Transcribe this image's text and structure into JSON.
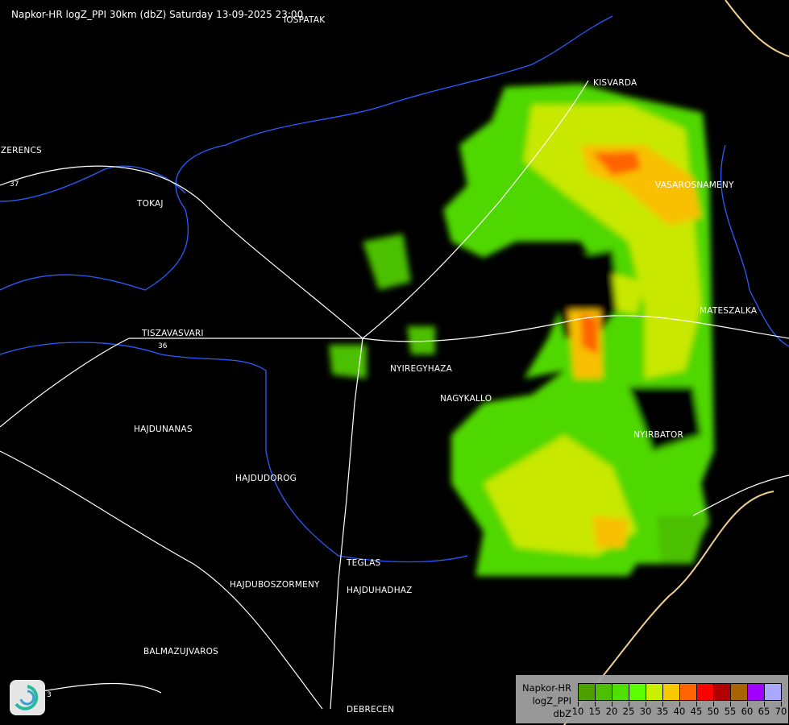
{
  "title": "Napkor-HR logZ_PPI 30km (dbZ) Saturday 13-09-2025 23:00",
  "cities": [
    {
      "name": "IOSPATAK"
    },
    {
      "name": "SZERENCS"
    },
    {
      "name": "KISVARDA"
    },
    {
      "name": "VASAROSNAMENY"
    },
    {
      "name": "TOKAJ"
    },
    {
      "name": "MATESZALKA"
    },
    {
      "name": "TISZAVASVARI"
    },
    {
      "name": "NYIREGYHAZA"
    },
    {
      "name": "NAGYKALLO"
    },
    {
      "name": "NYIRBATOR"
    },
    {
      "name": "HAJDUNANAS"
    },
    {
      "name": "HAJDUDOROG"
    },
    {
      "name": "TEGLAS"
    },
    {
      "name": "HAJDUHADHAZ"
    },
    {
      "name": "HAJDUBOSZORMENY"
    },
    {
      "name": "BALMAZUJVAROS"
    },
    {
      "name": "DEBRECEN"
    }
  ],
  "road_numbers": [
    "37",
    "36",
    "3"
  ],
  "legend": {
    "line1": "Napkor-HR",
    "line2": "logZ_PPI",
    "unit": "dbZ",
    "ticks": [
      "10",
      "15",
      "20",
      "25",
      "30",
      "35",
      "40",
      "45",
      "50",
      "55",
      "60",
      "65",
      "70"
    ],
    "colors": [
      "#4ea000",
      "#4cc000",
      "#50e000",
      "#5cff00",
      "#c8f000",
      "#f8c800",
      "#ff6400",
      "#ff0000",
      "#b00000",
      "#a86400",
      "#a000ff",
      "#a8a8ff"
    ]
  },
  "logo_icon": "swirl-logo-icon"
}
